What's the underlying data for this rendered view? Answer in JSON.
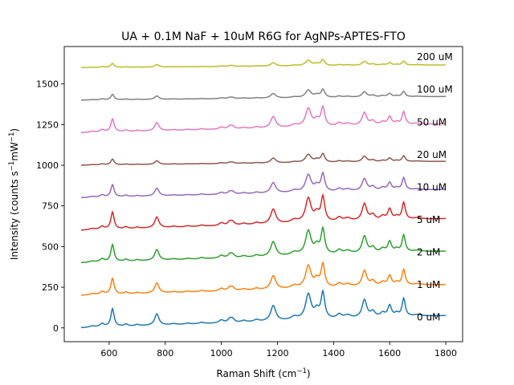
{
  "chart_data": {
    "type": "line",
    "title": "UA + 0.1M NaF + 10uM R6G for AgNPs-APTES-FTO",
    "xlabel": "Raman Shift (cm",
    "xlabel_sup": "−1",
    "xlabel_end": ")",
    "ylabel": "Intensity (counts s",
    "ylabel_sup1": "−1",
    "ylabel_mid": "mW",
    "ylabel_sup2": "−1",
    "ylabel_end": ")",
    "xlim": [
      440,
      1860
    ],
    "ylim": [
      -85,
      1730
    ],
    "xticks": [
      600,
      800,
      1000,
      1200,
      1400,
      1600,
      1800
    ],
    "yticks": [
      0,
      250,
      500,
      750,
      1000,
      1250,
      1500
    ],
    "x_range": [
      500,
      1800
    ],
    "grid": false,
    "legend": "none",
    "baseline_shape": {
      "x": [
        500,
        1800
      ],
      "y": [
        0,
        75
      ]
    },
    "peak_positions": [
      540,
      575,
      612,
      660,
      700,
      770,
      830,
      880,
      930,
      1000,
      1030,
      1040,
      1080,
      1125,
      1185,
      1260,
      1310,
      1340,
      1362,
      1420,
      1450,
      1510,
      1540,
      1575,
      1600,
      1625,
      1650,
      1700
    ],
    "series": [
      {
        "name": "0 uM",
        "label": "0 uM",
        "offset": 0,
        "scale": 1.0,
        "color": "#1f77b4"
      },
      {
        "name": "1 uM",
        "label": "1 uM",
        "offset": 200,
        "scale": 0.88,
        "color": "#ff7f0e"
      },
      {
        "name": "2 uM",
        "label": "2 uM",
        "offset": 400,
        "scale": 0.95,
        "color": "#2ca02c"
      },
      {
        "name": "5 uM",
        "label": "5 uM",
        "offset": 600,
        "scale": 0.95,
        "color": "#d62728"
      },
      {
        "name": "10 uM",
        "label": "10 uM",
        "offset": 800,
        "scale": 0.68,
        "color": "#9467bd"
      },
      {
        "name": "20 uM",
        "label": "20 uM",
        "offset": 1000,
        "scale": 0.32,
        "color": "#8c564b"
      },
      {
        "name": "50 uM",
        "label": "50 uM",
        "offset": 1200,
        "scale": 0.72,
        "color": "#e377c2"
      },
      {
        "name": "100 uM",
        "label": "100 uM",
        "offset": 1400,
        "scale": 0.3,
        "color": "#7f7f7f"
      },
      {
        "name": "200 uM",
        "label": "200 uM",
        "offset": 1600,
        "scale": 0.22,
        "color": "#bcbd22"
      }
    ],
    "peaks": [
      {
        "x": 612,
        "h": 110,
        "w": 7
      },
      {
        "x": 575,
        "h": 20,
        "w": 9
      },
      {
        "x": 540,
        "h": 8,
        "w": 12
      },
      {
        "x": 660,
        "h": 12,
        "w": 8
      },
      {
        "x": 700,
        "h": 8,
        "w": 8
      },
      {
        "x": 770,
        "h": 70,
        "w": 9
      },
      {
        "x": 830,
        "h": 6,
        "w": 10
      },
      {
        "x": 880,
        "h": 6,
        "w": 10
      },
      {
        "x": 930,
        "h": 8,
        "w": 10
      },
      {
        "x": 1000,
        "h": 18,
        "w": 10
      },
      {
        "x": 1030,
        "h": 22,
        "w": 8
      },
      {
        "x": 1040,
        "h": 20,
        "w": 8
      },
      {
        "x": 1080,
        "h": 10,
        "w": 10
      },
      {
        "x": 1125,
        "h": 12,
        "w": 10
      },
      {
        "x": 1185,
        "h": 95,
        "w": 11
      },
      {
        "x": 1260,
        "h": 20,
        "w": 15
      },
      {
        "x": 1310,
        "h": 155,
        "w": 12
      },
      {
        "x": 1340,
        "h": 50,
        "w": 10
      },
      {
        "x": 1362,
        "h": 160,
        "w": 8
      },
      {
        "x": 1420,
        "h": 25,
        "w": 10
      },
      {
        "x": 1450,
        "h": 20,
        "w": 15
      },
      {
        "x": 1510,
        "h": 110,
        "w": 10
      },
      {
        "x": 1540,
        "h": 35,
        "w": 10
      },
      {
        "x": 1575,
        "h": 25,
        "w": 10
      },
      {
        "x": 1600,
        "h": 70,
        "w": 8
      },
      {
        "x": 1625,
        "h": 20,
        "w": 8
      },
      {
        "x": 1650,
        "h": 110,
        "w": 7
      },
      {
        "x": 1700,
        "h": 10,
        "w": 20
      }
    ]
  }
}
